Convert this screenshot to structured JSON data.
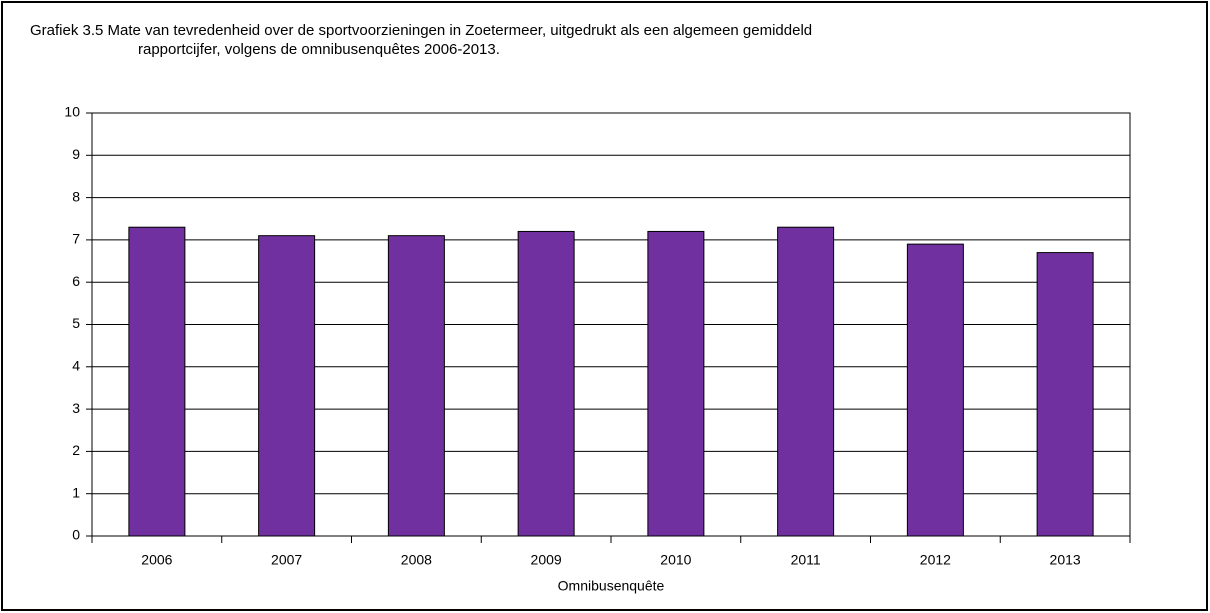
{
  "chart_data": {
    "type": "bar",
    "title": [
      "Grafiek 3.5  Mate van tevredenheid over de sportvoorzieningen in Zoetermeer, uitgedrukt als een algemeen gemiddeld",
      "rapportcijfer, volgens de omnibusenquêtes 2006-2013."
    ],
    "x_label": "Omnibusenquête",
    "categories": [
      "2006",
      "2007",
      "2008",
      "2009",
      "2010",
      "2011",
      "2012",
      "2013"
    ],
    "values": [
      7.3,
      7.1,
      7.1,
      7.2,
      7.2,
      7.3,
      6.9,
      6.7
    ],
    "color": "#7030a0",
    "ylim": [
      0,
      10
    ],
    "yticks": [
      0,
      1,
      2,
      3,
      4,
      5,
      6,
      7,
      8,
      9,
      10
    ],
    "grid": true
  }
}
